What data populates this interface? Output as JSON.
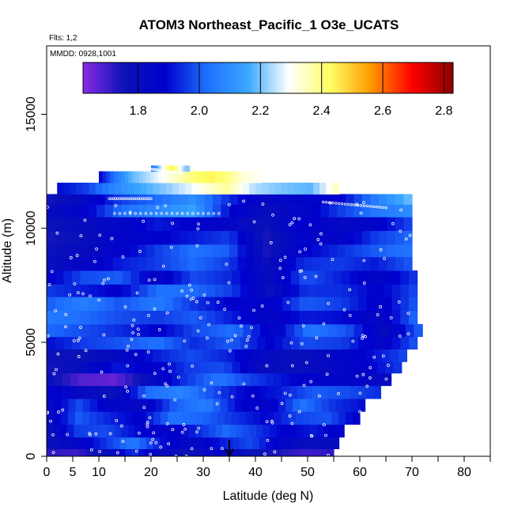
{
  "chart_data": {
    "type": "heatmap",
    "title": "ATOM3 Northeast_Pacific_1 O3e_UCATS",
    "flights_label": "Flts: 1,2",
    "dates_label": "MMDD: 0928,1001",
    "xlabel": "Latitude (deg N)",
    "ylabel": "Altitude (m)",
    "xlim": [
      0,
      85
    ],
    "ylim": [
      0,
      18000
    ],
    "x_ticks": [
      {
        "value": 0,
        "label": "0"
      },
      {
        "value": 5,
        "label": "5"
      },
      {
        "value": 10,
        "label": "10"
      },
      {
        "value": 20,
        "label": "20"
      },
      {
        "value": 30,
        "label": "30"
      },
      {
        "value": 40,
        "label": "40"
      },
      {
        "value": 50,
        "label": "50"
      },
      {
        "value": 60,
        "label": "60"
      },
      {
        "value": 70,
        "label": "70"
      },
      {
        "value": 80,
        "label": "80"
      }
    ],
    "x_minor_ticks": [
      15,
      25,
      35,
      45,
      55,
      65,
      75,
      85
    ],
    "y_ticks": [
      {
        "value": 0,
        "label": "0"
      },
      {
        "value": 5000,
        "label": "5000"
      },
      {
        "value": 10000,
        "label": "10000"
      },
      {
        "value": 15000,
        "label": "15000"
      }
    ],
    "colorbar": {
      "range": [
        1.62,
        2.83
      ],
      "ticks": [
        {
          "value": 1.8,
          "label": "1.8"
        },
        {
          "value": 2.0,
          "label": "2.0"
        },
        {
          "value": 2.2,
          "label": "2.2"
        },
        {
          "value": 2.4,
          "label": "2.4"
        },
        {
          "value": 2.6,
          "label": "2.6"
        },
        {
          "value": 2.8,
          "label": "2.8"
        }
      ],
      "colors": [
        "#8a2be2",
        "#0a12b8",
        "#0000cd",
        "#1e6fff",
        "#39a6ff",
        "#ffffff",
        "#ffff66",
        "#ff9900",
        "#ff0000",
        "#8b0000"
      ]
    },
    "marker": {
      "latitude": 35,
      "altitude_top": 700,
      "altitude_bottom": 0,
      "color": "#000000"
    },
    "layers": [
      {
        "alt": [
          0,
          330
        ],
        "lat": [
          0,
          55
        ],
        "values": [
          1.72,
          1.7,
          1.78,
          1.95,
          1.8,
          1.75,
          1.88,
          1.76,
          1.74,
          1.7,
          1.72
        ]
      },
      {
        "alt": [
          330,
          840
        ],
        "lat": [
          0,
          56
        ],
        "values": [
          1.76,
          1.84,
          1.95,
          2.05,
          1.9,
          1.82,
          1.92,
          1.98,
          1.85,
          1.78,
          1.8
        ]
      },
      {
        "alt": [
          840,
          1400
        ],
        "lat": [
          0,
          57
        ],
        "values": [
          1.75,
          1.96,
          1.98,
          1.9,
          1.86,
          1.93,
          2.02,
          1.96,
          1.88,
          1.92,
          1.85
        ]
      },
      {
        "alt": [
          1400,
          1970
        ],
        "lat": [
          0,
          60
        ],
        "values": [
          1.8,
          2.0,
          1.93,
          1.88,
          2.03,
          2.01,
          1.95,
          1.89,
          1.97,
          1.99,
          1.86
        ]
      },
      {
        "alt": [
          1970,
          2530
        ],
        "lat": [
          0,
          61
        ],
        "values": [
          1.82,
          1.98,
          1.85,
          1.82,
          2.0,
          2.06,
          1.9,
          1.85,
          2.04,
          1.95,
          1.9
        ]
      },
      {
        "alt": [
          2530,
          3100
        ],
        "lat": [
          0,
          64
        ],
        "values": [
          1.9,
          1.82,
          1.76,
          2.02,
          2.07,
          1.98,
          1.88,
          1.92,
          2.0,
          1.98,
          1.94
        ]
      },
      {
        "alt": [
          3100,
          3650
        ],
        "lat": [
          0,
          66
        ],
        "values": [
          1.78,
          1.68,
          1.66,
          1.8,
          1.95,
          2.04,
          1.96,
          1.9,
          1.86,
          1.84,
          1.8
        ]
      },
      {
        "alt": [
          3650,
          4150
        ],
        "lat": [
          0,
          68
        ],
        "values": [
          1.74,
          1.8,
          1.92,
          1.86,
          1.96,
          1.98,
          1.8,
          1.78,
          1.82,
          1.88,
          1.96
        ]
      },
      {
        "alt": [
          4150,
          4700
        ],
        "lat": [
          0,
          69
        ],
        "values": [
          1.76,
          1.76,
          1.82,
          1.92,
          1.98,
          1.93,
          1.82,
          1.77,
          1.84,
          1.9,
          1.98
        ]
      },
      {
        "alt": [
          4700,
          5250
        ],
        "lat": [
          0,
          71
        ],
        "values": [
          1.9,
          1.96,
          1.99,
          2.03,
          1.94,
          2.0,
          1.88,
          1.98,
          1.96,
          1.84,
          2.0
        ]
      },
      {
        "alt": [
          5250,
          5800
        ],
        "lat": [
          0,
          72
        ],
        "values": [
          2.02,
          1.98,
          1.94,
          1.88,
          1.98,
          2.03,
          1.85,
          2.04,
          1.99,
          1.8,
          2.02
        ]
      },
      {
        "alt": [
          5800,
          6400
        ],
        "lat": [
          0,
          71
        ],
        "values": [
          2.05,
          2.02,
          1.98,
          1.96,
          2.0,
          1.92,
          1.84,
          1.92,
          1.9,
          1.82,
          2.03
        ]
      },
      {
        "alt": [
          6400,
          7000
        ],
        "lat": [
          0,
          71
        ],
        "values": [
          2.0,
          2.06,
          1.99,
          2.05,
          1.95,
          1.88,
          1.86,
          2.0,
          1.96,
          1.86,
          2.0
        ]
      },
      {
        "alt": [
          7000,
          7550
        ],
        "lat": [
          0,
          71
        ],
        "values": [
          1.96,
          1.92,
          1.88,
          2.03,
          2.02,
          1.96,
          1.78,
          1.95,
          1.94,
          1.88,
          1.98
        ]
      },
      {
        "alt": [
          7550,
          8150
        ],
        "lat": [
          0,
          71
        ],
        "values": [
          1.86,
          1.98,
          2.0,
          1.84,
          1.98,
          1.93,
          1.8,
          1.99,
          1.92,
          1.84,
          1.96
        ]
      },
      {
        "alt": [
          8150,
          8750
        ],
        "lat": [
          0,
          70
        ],
        "values": [
          1.78,
          1.84,
          1.92,
          1.96,
          2.02,
          1.96,
          1.78,
          1.94,
          1.96,
          1.92,
          2.0
        ]
      },
      {
        "alt": [
          8750,
          9300
        ],
        "lat": [
          0,
          70
        ],
        "values": [
          1.76,
          1.8,
          1.86,
          1.96,
          2.03,
          2.0,
          1.74,
          1.88,
          1.94,
          2.0,
          2.04
        ]
      },
      {
        "alt": [
          9300,
          9900
        ],
        "lat": [
          0,
          70
        ],
        "values": [
          1.74,
          1.78,
          1.86,
          1.88,
          1.92,
          1.96,
          1.74,
          1.86,
          1.84,
          1.96,
          2.02
        ]
      },
      {
        "alt": [
          9900,
          10500
        ],
        "lat": [
          0,
          70
        ],
        "values": [
          1.76,
          1.8,
          1.84,
          1.92,
          1.88,
          1.84,
          1.76,
          1.9,
          1.82,
          1.86,
          1.98
        ]
      },
      {
        "alt": [
          10500,
          11050
        ],
        "lat": [
          0,
          70
        ],
        "values": [
          1.8,
          1.86,
          2.02,
          2.08,
          2.14,
          1.9,
          1.8,
          1.84,
          1.96,
          2.04,
          2.1
        ]
      },
      {
        "alt": [
          11050,
          11500
        ],
        "lat": [
          0,
          70
        ],
        "values": [
          1.74,
          1.82,
          1.96,
          2.02,
          2.1,
          1.94,
          1.82,
          1.86,
          1.88,
          2.06,
          2.2
        ]
      },
      {
        "alt": [
          11500,
          12000
        ],
        "lat": [
          2,
          56
        ],
        "values": [
          1.9,
          1.96,
          2.08,
          2.16,
          2.22,
          2.3,
          2.38,
          2.24,
          2.2,
          2.18,
          2.36
        ]
      },
      {
        "alt": [
          12000,
          12500
        ],
        "lat": [
          10,
          41
        ],
        "values": [
          1.88,
          2.04,
          2.18,
          2.24,
          2.3,
          2.36,
          2.42,
          2.44,
          2.4,
          2.32,
          2.3
        ]
      },
      {
        "alt": [
          12500,
          12750
        ],
        "lat": [
          20,
          28
        ],
        "values": [
          2.0,
          2.1,
          2.22,
          2.3,
          2.4,
          2.44,
          2.38,
          2.3,
          2.22,
          2.2,
          2.36
        ]
      }
    ]
  }
}
